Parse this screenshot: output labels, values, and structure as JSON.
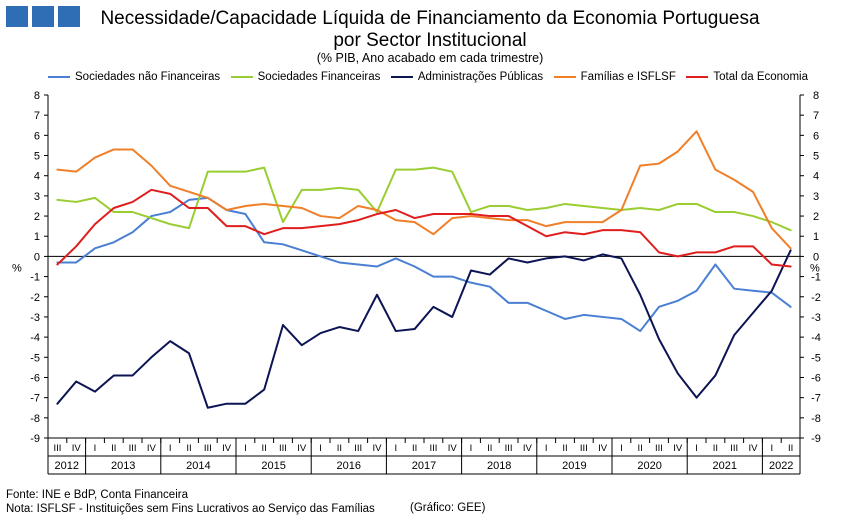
{
  "header": {
    "title_line1": "Necessidade/Capacidade Líquida de Financiamento da Economia Portuguesa",
    "title_line2": "por Sector Institucional",
    "subtitle": "(% PIB, Ano acabado em cada trimestre)"
  },
  "colors": {
    "logo": "#2f6db5",
    "snf": "#4a7fd4",
    "sf": "#9acd32",
    "ap": "#0c1454",
    "fam": "#f07f2a",
    "total": "#e01e1e"
  },
  "footer": {
    "source": "Fonte: INE e  BdP, Conta Financeira",
    "note": "Nota: ISFLSF - Instituições sem Fins Lucrativos ao Serviço das Famílias",
    "credit": "(Gráfico: GEE)"
  },
  "chart_data": {
    "type": "line",
    "ylabel_left": "%",
    "ylabel_right": "%",
    "ylim": [
      -9,
      8
    ],
    "yticks": [
      -9,
      -8,
      -7,
      -6,
      -5,
      -4,
      -3,
      -2,
      -1,
      0,
      1,
      2,
      3,
      4,
      5,
      6,
      7,
      8
    ],
    "legend_position": "top",
    "grid": false,
    "quarters": [
      "III",
      "IV",
      "I",
      "II",
      "III",
      "IV",
      "I",
      "II",
      "III",
      "IV",
      "I",
      "II",
      "III",
      "IV",
      "I",
      "II",
      "III",
      "IV",
      "I",
      "II",
      "III",
      "IV",
      "I",
      "II",
      "III",
      "IV",
      "I",
      "II",
      "III",
      "IV",
      "I",
      "II",
      "III",
      "IV",
      "I",
      "II",
      "III",
      "IV",
      "I",
      "II"
    ],
    "years": [
      {
        "label": "2012",
        "start": 0,
        "count": 2
      },
      {
        "label": "2013",
        "start": 2,
        "count": 4
      },
      {
        "label": "2014",
        "start": 6,
        "count": 4
      },
      {
        "label": "2015",
        "start": 10,
        "count": 4
      },
      {
        "label": "2016",
        "start": 14,
        "count": 4
      },
      {
        "label": "2017",
        "start": 18,
        "count": 4
      },
      {
        "label": "2018",
        "start": 22,
        "count": 4
      },
      {
        "label": "2019",
        "start": 26,
        "count": 4
      },
      {
        "label": "2020",
        "start": 30,
        "count": 4
      },
      {
        "label": "2021",
        "start": 34,
        "count": 4
      },
      {
        "label": "2022",
        "start": 38,
        "count": 2
      }
    ],
    "series": [
      {
        "name": "Sociedades não Financeiras",
        "key": "snf",
        "values": [
          -0.3,
          -0.3,
          0.4,
          0.7,
          1.2,
          2.0,
          2.2,
          2.8,
          2.9,
          2.3,
          2.1,
          0.7,
          0.6,
          0.3,
          0.0,
          -0.3,
          -0.4,
          -0.5,
          -0.1,
          -0.5,
          -1.0,
          -1.0,
          -1.3,
          -1.5,
          -2.3,
          -2.3,
          -2.7,
          -3.1,
          -2.9,
          -3.0,
          -3.1,
          -3.7,
          -2.5,
          -2.2,
          -1.7,
          -0.4,
          -1.6,
          -1.7,
          -1.8,
          -2.5
        ]
      },
      {
        "name": "Sociedades Financeiras",
        "key": "sf",
        "values": [
          2.8,
          2.7,
          2.9,
          2.2,
          2.2,
          1.9,
          1.6,
          1.4,
          4.2,
          4.2,
          4.2,
          4.4,
          1.7,
          3.3,
          3.3,
          3.4,
          3.3,
          2.2,
          4.3,
          4.3,
          4.4,
          4.2,
          2.2,
          2.5,
          2.5,
          2.3,
          2.4,
          2.6,
          2.5,
          2.4,
          2.3,
          2.4,
          2.3,
          2.6,
          2.6,
          2.2,
          2.2,
          2.0,
          1.7,
          1.3
        ]
      },
      {
        "name": "Administrações Públicas",
        "key": "ap",
        "values": [
          -7.3,
          -6.2,
          -6.7,
          -5.9,
          -5.9,
          -5.0,
          -4.2,
          -4.8,
          -7.5,
          -7.3,
          -7.3,
          -6.6,
          -3.4,
          -4.4,
          -3.8,
          -3.5,
          -3.7,
          -1.9,
          -3.7,
          -3.6,
          -2.5,
          -3.0,
          -0.7,
          -0.9,
          -0.1,
          -0.3,
          -0.1,
          0.0,
          -0.2,
          0.1,
          -0.1,
          -1.9,
          -4.1,
          -5.8,
          -7.0,
          -5.9,
          -3.9,
          -2.8,
          -1.7,
          0.3
        ]
      },
      {
        "name": "Famílias e ISFLSF",
        "key": "fam",
        "values": [
          4.3,
          4.2,
          4.9,
          5.3,
          5.3,
          4.5,
          3.5,
          3.2,
          2.9,
          2.3,
          2.5,
          2.6,
          2.5,
          2.4,
          2.0,
          1.9,
          2.5,
          2.3,
          1.8,
          1.7,
          1.1,
          1.9,
          2.0,
          1.9,
          1.8,
          1.8,
          1.5,
          1.7,
          1.7,
          1.7,
          2.3,
          4.5,
          4.6,
          5.2,
          6.2,
          4.3,
          3.8,
          3.2,
          1.4,
          0.4
        ]
      },
      {
        "name": "Total da Economia",
        "key": "total",
        "values": [
          -0.4,
          0.5,
          1.6,
          2.4,
          2.7,
          3.3,
          3.1,
          2.4,
          2.4,
          1.5,
          1.5,
          1.1,
          1.4,
          1.4,
          1.5,
          1.6,
          1.8,
          2.1,
          2.3,
          1.9,
          2.1,
          2.1,
          2.1,
          2.0,
          2.0,
          1.5,
          1.0,
          1.2,
          1.1,
          1.3,
          1.3,
          1.2,
          0.2,
          0.0,
          0.2,
          0.2,
          0.5,
          0.5,
          -0.4,
          -0.5
        ]
      }
    ]
  }
}
